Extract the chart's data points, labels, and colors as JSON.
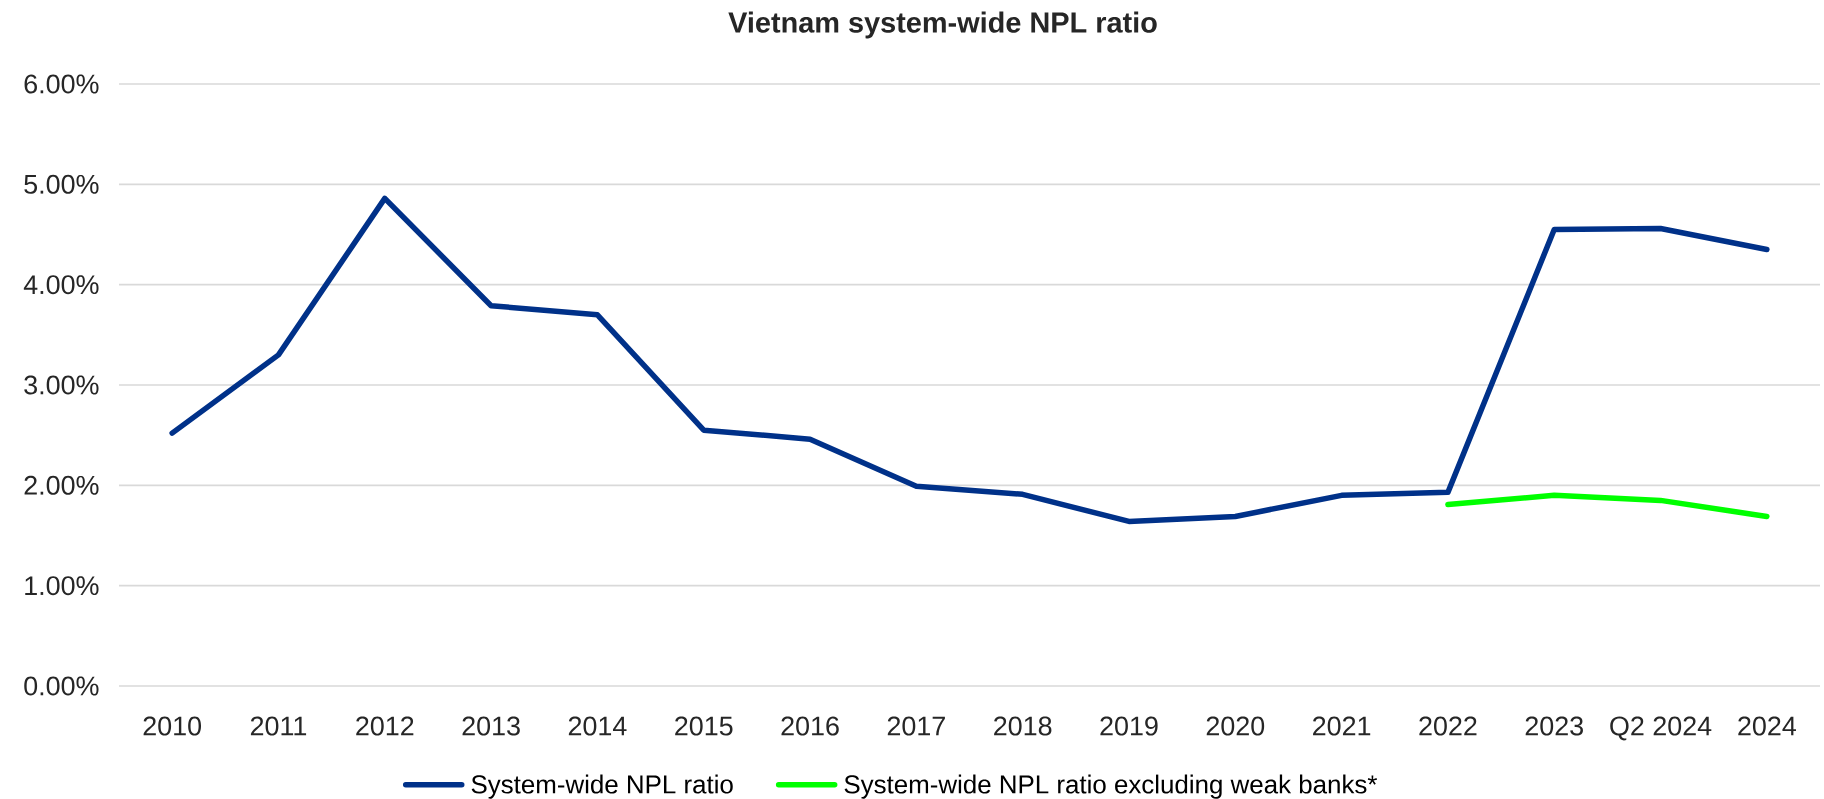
{
  "chart_data": {
    "type": "line",
    "title": "Vietnam system-wide NPL ratio",
    "categories": [
      "2010",
      "2011",
      "2012",
      "2013",
      "2014",
      "2015",
      "2016",
      "2017",
      "2018",
      "2019",
      "2020",
      "2021",
      "2022",
      "2023",
      "Q2 2024",
      "2024"
    ],
    "series": [
      {
        "name": "System-wide NPL ratio",
        "color": "#003189",
        "values": [
          2.52,
          3.3,
          4.86,
          3.79,
          3.7,
          2.55,
          2.46,
          1.99,
          1.91,
          1.64,
          1.69,
          1.9,
          1.93,
          4.55,
          4.56,
          4.35
        ]
      },
      {
        "name": "System-wide NPL ratio excluding weak banks*",
        "color": "#00ff00",
        "values": [
          null,
          null,
          null,
          null,
          null,
          null,
          null,
          null,
          null,
          null,
          null,
          null,
          1.81,
          1.9,
          1.85,
          1.69
        ]
      }
    ],
    "ylim": [
      0,
      6
    ],
    "yticks": [
      {
        "value": 0,
        "label": "0.00%"
      },
      {
        "value": 1,
        "label": "1.00%"
      },
      {
        "value": 2,
        "label": "2.00%"
      },
      {
        "value": 3,
        "label": "3.00%"
      },
      {
        "value": 4,
        "label": "4.00%"
      },
      {
        "value": 5,
        "label": "5.00%"
      },
      {
        "value": 6,
        "label": "6.00%"
      }
    ],
    "grid": "y",
    "legend": "bottom",
    "marker": "none",
    "line_style": "solid"
  }
}
